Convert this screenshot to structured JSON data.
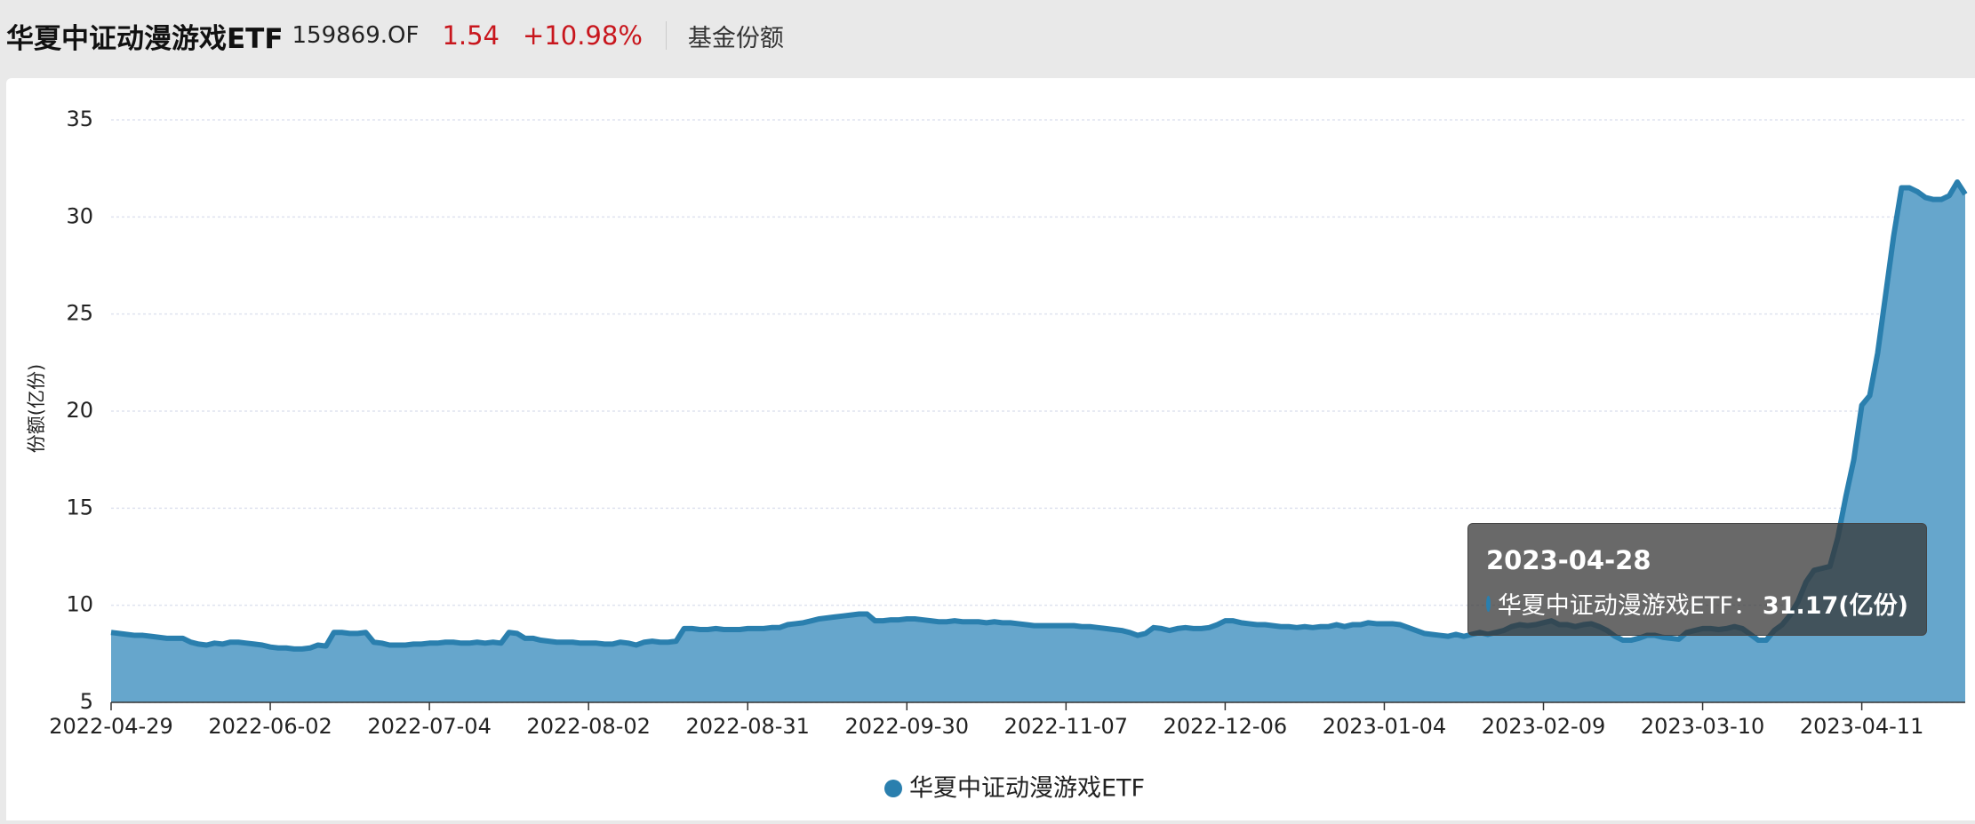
{
  "header": {
    "name": "华夏中证动漫游戏ETF",
    "code": "159869.OF",
    "price": "1.54",
    "change": "+10.98%",
    "tab": "基金份额"
  },
  "chart_data": {
    "type": "area",
    "y_label": "份额(亿份)",
    "categories": [
      "2022-04-29",
      null,
      null,
      null,
      null,
      null,
      null,
      null,
      null,
      null,
      null,
      null,
      null,
      null,
      null,
      null,
      null,
      null,
      null,
      null,
      "2022-06-02",
      null,
      null,
      null,
      null,
      null,
      null,
      null,
      null,
      null,
      null,
      null,
      null,
      null,
      null,
      null,
      null,
      null,
      null,
      null,
      "2022-07-04",
      null,
      null,
      null,
      null,
      null,
      null,
      null,
      null,
      null,
      null,
      null,
      null,
      null,
      null,
      null,
      null,
      null,
      null,
      null,
      "2022-08-02",
      null,
      null,
      null,
      null,
      null,
      null,
      null,
      null,
      null,
      null,
      null,
      null,
      null,
      null,
      null,
      null,
      null,
      null,
      null,
      "2022-08-31",
      null,
      null,
      null,
      null,
      null,
      null,
      null,
      null,
      null,
      null,
      null,
      null,
      null,
      null,
      null,
      null,
      null,
      null,
      null,
      "2022-09-30",
      null,
      null,
      null,
      null,
      null,
      null,
      null,
      null,
      null,
      null,
      null,
      null,
      null,
      null,
      null,
      null,
      null,
      null,
      null,
      "2022-11-07",
      null,
      null,
      null,
      null,
      null,
      null,
      null,
      null,
      null,
      null,
      null,
      null,
      null,
      null,
      null,
      null,
      null,
      null,
      null,
      "2022-12-06",
      null,
      null,
      null,
      null,
      null,
      null,
      null,
      null,
      null,
      null,
      null,
      null,
      null,
      null,
      null,
      null,
      null,
      null,
      null,
      "2023-01-04",
      null,
      null,
      null,
      null,
      null,
      null,
      null,
      null,
      null,
      null,
      null,
      null,
      null,
      null,
      null,
      null,
      null,
      null,
      null,
      "2023-02-09",
      null,
      null,
      null,
      null,
      null,
      null,
      null,
      null,
      null,
      null,
      null,
      null,
      null,
      null,
      null,
      null,
      null,
      null,
      null,
      "2023-03-10",
      null,
      null,
      null,
      null,
      null,
      null,
      null,
      null,
      null,
      null,
      null,
      null,
      null,
      null,
      null,
      null,
      null,
      null,
      null,
      "2023-04-11",
      null,
      null,
      null,
      null,
      null,
      null,
      null,
      null,
      null,
      null,
      null,
      null,
      null
    ],
    "series": [
      {
        "name": "华夏中证动漫游戏ETF",
        "color": "#2a7fae",
        "fill_color": "#66a6cc",
        "values": [
          8.6,
          8.55,
          8.5,
          8.45,
          8.45,
          8.4,
          8.35,
          8.3,
          8.3,
          8.3,
          8.1,
          8.0,
          7.95,
          8.05,
          8.0,
          8.1,
          8.1,
          8.05,
          8.0,
          7.95,
          7.85,
          7.8,
          7.8,
          7.75,
          7.75,
          7.8,
          7.95,
          7.9,
          8.6,
          8.6,
          8.55,
          8.55,
          8.6,
          8.1,
          8.05,
          7.95,
          7.95,
          7.95,
          8.0,
          8.0,
          8.05,
          8.05,
          8.1,
          8.1,
          8.05,
          8.05,
          8.1,
          8.05,
          8.1,
          8.05,
          8.6,
          8.55,
          8.3,
          8.3,
          8.2,
          8.15,
          8.1,
          8.1,
          8.1,
          8.05,
          8.05,
          8.05,
          8.0,
          8.0,
          8.1,
          8.05,
          7.95,
          8.1,
          8.15,
          8.1,
          8.1,
          8.15,
          8.8,
          8.8,
          8.75,
          8.75,
          8.8,
          8.75,
          8.75,
          8.75,
          8.8,
          8.8,
          8.8,
          8.85,
          8.85,
          9.0,
          9.05,
          9.1,
          9.2,
          9.3,
          9.35,
          9.4,
          9.45,
          9.5,
          9.55,
          9.55,
          9.2,
          9.2,
          9.25,
          9.25,
          9.3,
          9.3,
          9.25,
          9.2,
          9.15,
          9.15,
          9.2,
          9.15,
          9.15,
          9.15,
          9.1,
          9.15,
          9.1,
          9.1,
          9.05,
          9.0,
          8.95,
          8.95,
          8.95,
          8.95,
          8.95,
          8.95,
          8.9,
          8.9,
          8.85,
          8.8,
          8.75,
          8.7,
          8.6,
          8.45,
          8.55,
          8.85,
          8.8,
          8.7,
          8.8,
          8.85,
          8.8,
          8.8,
          8.85,
          9.0,
          9.2,
          9.2,
          9.1,
          9.05,
          9.0,
          9.0,
          8.95,
          8.9,
          8.9,
          8.85,
          8.9,
          8.85,
          8.9,
          8.9,
          9.0,
          8.9,
          9.0,
          9.0,
          9.1,
          9.05,
          9.05,
          9.05,
          9.0,
          8.85,
          8.7,
          8.55,
          8.5,
          8.45,
          8.4,
          8.5,
          8.4,
          8.5,
          8.6,
          8.5,
          8.6,
          8.7,
          8.9,
          9.0,
          8.95,
          9.0,
          9.1,
          9.2,
          9.0,
          9.0,
          8.9,
          9.0,
          9.05,
          8.9,
          8.7,
          8.4,
          8.2,
          8.2,
          8.3,
          8.45,
          8.45,
          8.35,
          8.3,
          8.25,
          8.6,
          8.7,
          8.8,
          8.8,
          8.75,
          8.8,
          8.9,
          8.8,
          8.5,
          8.2,
          8.2,
          8.7,
          9.0,
          9.5,
          10.2,
          11.2,
          11.8,
          11.9,
          12.0,
          13.5,
          15.6,
          17.5,
          20.3,
          20.8,
          23.0,
          26.0,
          29.0,
          31.5,
          31.5,
          31.3,
          31.0,
          30.9,
          30.9,
          31.1,
          31.8,
          31.17
        ]
      }
    ],
    "ylim": [
      5,
      35
    ],
    "yticks": [
      5,
      10,
      15,
      20,
      25,
      30,
      35
    ],
    "grid": true,
    "legend": "bottom",
    "tooltip": {
      "x": "2023-04-28",
      "value": 31.17,
      "value_label": "31.17(亿份)"
    }
  }
}
